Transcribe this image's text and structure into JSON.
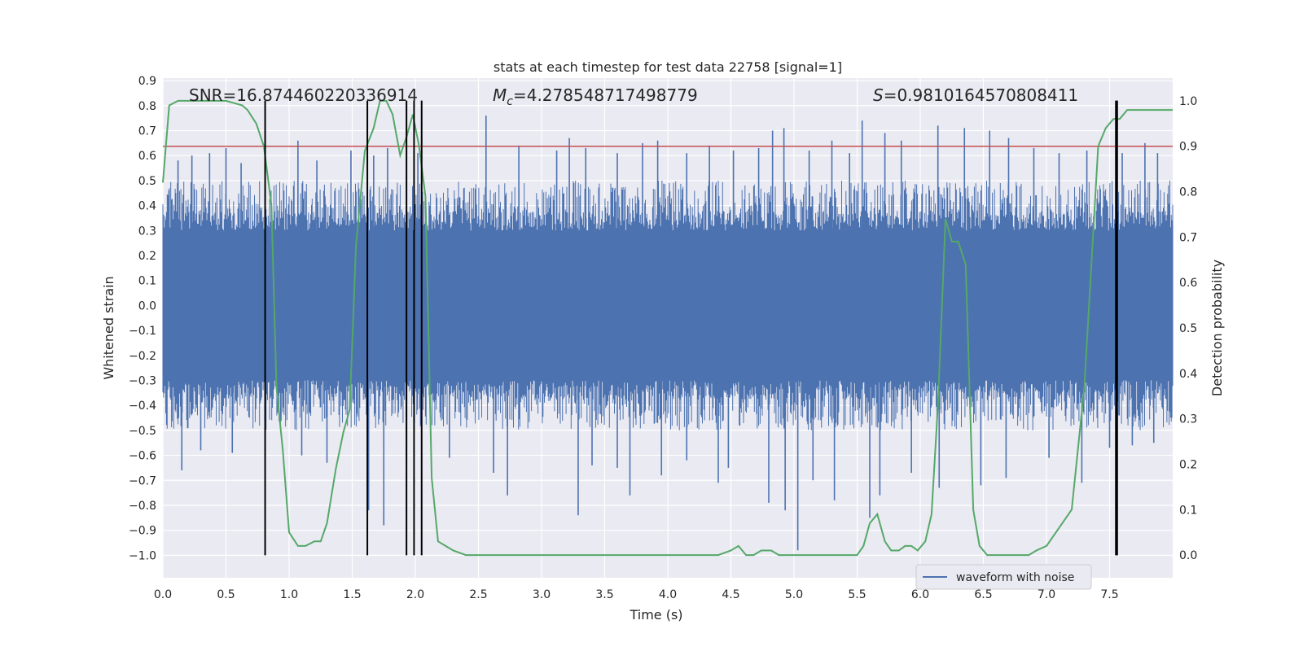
{
  "chart_data": {
    "type": "line",
    "title": "stats at each timestep for test data 22758 [signal=1]",
    "xlabel": "Time (s)",
    "ylabel": "Whitened strain",
    "y2label": "Detection probability",
    "xlim": [
      0.0,
      8.0
    ],
    "ylim": [
      -1.09,
      0.91
    ],
    "y2lim": [
      -0.05,
      1.05
    ],
    "xticks": [
      "0.0",
      "0.5",
      "1.0",
      "1.5",
      "2.0",
      "2.5",
      "3.0",
      "3.5",
      "4.0",
      "4.5",
      "5.0",
      "5.5",
      "6.0",
      "6.5",
      "7.0",
      "7.5"
    ],
    "yticks": [
      "0.9",
      "0.8",
      "0.7",
      "0.6",
      "0.5",
      "0.4",
      "0.3",
      "0.2",
      "0.1",
      "0.0",
      "−0.1",
      "−0.2",
      "−0.3",
      "−0.4",
      "−0.5",
      "−0.6",
      "−0.7",
      "−0.8",
      "−0.9",
      "−1.0"
    ],
    "y2ticks": [
      "1.0",
      "0.9",
      "0.8",
      "0.7",
      "0.6",
      "0.5",
      "0.4",
      "0.3",
      "0.2",
      "0.1",
      "0.0"
    ],
    "annotations": {
      "snr": "SNR=16.874460220336914",
      "mc_symbol": "M",
      "mc_sub": "c",
      "mc_value": "=4.278548717498779",
      "s_symbol": "S",
      "s_value": "=0.9810164570808411"
    },
    "legend": {
      "label": "waveform with noise",
      "location": "lower-right"
    },
    "threshold": {
      "value": 0.9,
      "axis": "right",
      "color": "#c44e52"
    },
    "waveform": {
      "name": "waveform with noise",
      "color": "#4c72b0",
      "core_amplitude": 0.3,
      "typical_peak": 0.5,
      "spikes_high": [
        [
          0.12,
          0.58
        ],
        [
          0.23,
          0.6
        ],
        [
          0.37,
          0.61
        ],
        [
          0.5,
          0.63
        ],
        [
          0.62,
          0.57
        ],
        [
          1.07,
          0.66
        ],
        [
          1.22,
          0.58
        ],
        [
          1.49,
          0.62
        ],
        [
          1.67,
          0.6
        ],
        [
          1.78,
          0.63
        ],
        [
          2.02,
          0.61
        ],
        [
          2.56,
          0.76
        ],
        [
          2.82,
          0.64
        ],
        [
          3.12,
          0.62
        ],
        [
          3.22,
          0.67
        ],
        [
          3.35,
          0.63
        ],
        [
          3.6,
          0.61
        ],
        [
          3.8,
          0.65
        ],
        [
          3.92,
          0.66
        ],
        [
          4.15,
          0.61
        ],
        [
          4.33,
          0.64
        ],
        [
          4.52,
          0.62
        ],
        [
          4.72,
          0.63
        ],
        [
          4.83,
          0.7
        ],
        [
          4.92,
          0.71
        ],
        [
          5.12,
          0.62
        ],
        [
          5.3,
          0.66
        ],
        [
          5.44,
          0.61
        ],
        [
          5.54,
          0.74
        ],
        [
          5.72,
          0.69
        ],
        [
          5.85,
          0.66
        ],
        [
          6.14,
          0.72
        ],
        [
          6.35,
          0.71
        ],
        [
          6.55,
          0.7
        ],
        [
          6.7,
          0.67
        ],
        [
          6.9,
          0.63
        ],
        [
          7.1,
          0.61
        ],
        [
          7.32,
          0.62
        ],
        [
          7.6,
          0.61
        ],
        [
          7.78,
          0.65
        ],
        [
          7.88,
          0.61
        ]
      ],
      "spikes_low": [
        [
          0.15,
          -0.66
        ],
        [
          0.3,
          -0.58
        ],
        [
          0.55,
          -0.59
        ],
        [
          0.81,
          -0.65
        ],
        [
          1.1,
          -0.6
        ],
        [
          1.3,
          -0.63
        ],
        [
          1.63,
          -0.82
        ],
        [
          1.75,
          -0.88
        ],
        [
          1.93,
          -0.63
        ],
        [
          2.27,
          -0.61
        ],
        [
          2.62,
          -0.67
        ],
        [
          2.73,
          -0.76
        ],
        [
          3.29,
          -0.84
        ],
        [
          3.4,
          -0.64
        ],
        [
          3.6,
          -0.65
        ],
        [
          3.7,
          -0.76
        ],
        [
          3.95,
          -0.68
        ],
        [
          4.15,
          -0.62
        ],
        [
          4.4,
          -0.71
        ],
        [
          4.48,
          -0.65
        ],
        [
          4.8,
          -0.79
        ],
        [
          4.93,
          -0.82
        ],
        [
          5.03,
          -0.98
        ],
        [
          5.15,
          -0.7
        ],
        [
          5.32,
          -0.78
        ],
        [
          5.6,
          -0.85
        ],
        [
          5.68,
          -0.76
        ],
        [
          5.93,
          -0.67
        ],
        [
          6.15,
          -0.73
        ],
        [
          6.48,
          -0.72
        ],
        [
          6.68,
          -0.69
        ],
        [
          7.02,
          -0.61
        ],
        [
          7.28,
          -0.71
        ],
        [
          7.5,
          -0.57
        ],
        [
          7.68,
          -0.56
        ],
        [
          7.85,
          -0.55
        ]
      ]
    },
    "detection_probability": {
      "name": "Detection probability",
      "color": "#55a868",
      "x": [
        0.0,
        0.05,
        0.12,
        0.3,
        0.5,
        0.63,
        0.67,
        0.74,
        0.8,
        0.86,
        0.9,
        0.95,
        1.0,
        1.07,
        1.13,
        1.2,
        1.25,
        1.3,
        1.37,
        1.43,
        1.48,
        1.53,
        1.6,
        1.67,
        1.72,
        1.77,
        1.82,
        1.88,
        1.93,
        1.98,
        2.03,
        2.08,
        2.13,
        2.18,
        2.24,
        2.3,
        2.4,
        2.5,
        2.6,
        2.8,
        3.0,
        3.2,
        3.4,
        3.6,
        3.8,
        4.0,
        4.2,
        4.4,
        4.5,
        4.56,
        4.62,
        4.68,
        4.74,
        4.82,
        4.88,
        4.93,
        5.0,
        5.05,
        5.1,
        5.3,
        5.5,
        5.55,
        5.6,
        5.66,
        5.72,
        5.77,
        5.83,
        5.88,
        5.93,
        5.98,
        6.04,
        6.09,
        6.14,
        6.2,
        6.25,
        6.3,
        6.36,
        6.42,
        6.47,
        6.53,
        6.59,
        6.64,
        6.7,
        6.75,
        6.8,
        6.86,
        6.92,
        7.0,
        7.2,
        7.3,
        7.41,
        7.47,
        7.53,
        7.58,
        7.64,
        7.7,
        7.76,
        7.83,
        7.88,
        7.94,
        8.0
      ],
      "y": [
        0.82,
        0.99,
        1.0,
        1.0,
        1.0,
        0.99,
        0.98,
        0.95,
        0.9,
        0.77,
        0.37,
        0.23,
        0.05,
        0.02,
        0.02,
        0.03,
        0.03,
        0.07,
        0.19,
        0.27,
        0.32,
        0.68,
        0.89,
        0.94,
        1.0,
        1.0,
        0.97,
        0.88,
        0.92,
        0.97,
        0.9,
        0.79,
        0.17,
        0.03,
        0.02,
        0.01,
        0.0,
        0.0,
        0.0,
        0.0,
        0.0,
        0.0,
        0.0,
        0.0,
        0.0,
        0.0,
        0.0,
        0.0,
        0.01,
        0.02,
        0.0,
        0.0,
        0.01,
        0.01,
        0.0,
        0.0,
        0.0,
        0.0,
        0.0,
        0.0,
        0.0,
        0.02,
        0.07,
        0.09,
        0.03,
        0.01,
        0.01,
        0.02,
        0.02,
        0.01,
        0.03,
        0.09,
        0.33,
        0.74,
        0.69,
        0.69,
        0.64,
        0.1,
        0.02,
        0.0,
        0.0,
        0.0,
        0.0,
        0.0,
        0.0,
        0.0,
        0.01,
        0.02,
        0.1,
        0.37,
        0.9,
        0.94,
        0.96,
        0.96,
        0.98,
        0.98,
        0.98,
        0.98,
        0.98,
        0.98,
        0.98
      ]
    },
    "event_markers": {
      "color": "#000000",
      "x": [
        0.81,
        1.62,
        1.93,
        1.99,
        2.05,
        7.55,
        7.56
      ],
      "y_range": [
        -1.0,
        0.82
      ]
    }
  }
}
